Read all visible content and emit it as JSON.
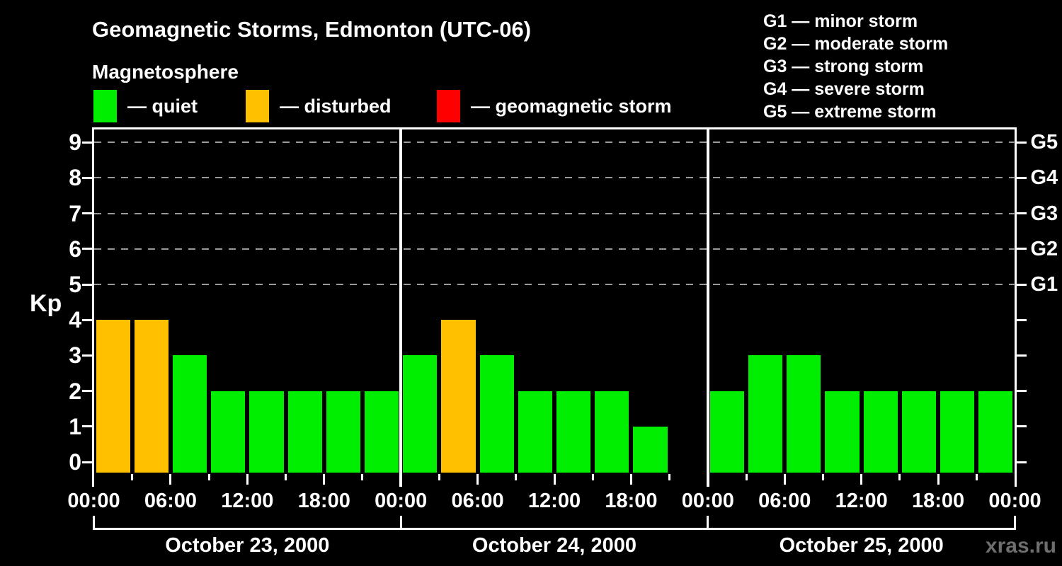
{
  "header": {
    "title": "Geomagnetic Storms, Edmonton (UTC-06)",
    "subtitle": "Magnetosphere",
    "legend": [
      {
        "name": "quiet",
        "label": "— quiet",
        "color": "#00EE00"
      },
      {
        "name": "disturbed",
        "label": "— disturbed",
        "color": "#FFC000"
      },
      {
        "name": "geomagnetic-storm",
        "label": "— geomagnetic storm",
        "color": "#FF0000"
      }
    ],
    "g_scale_legend": [
      "G1 — minor storm",
      "G2 — moderate storm",
      "G3 — strong storm",
      "G4 — severe storm",
      "G5 — extreme storm"
    ]
  },
  "chart_data": {
    "type": "bar",
    "title": "Geomagnetic Storms, Edmonton (UTC-06)",
    "ylabel": "Kp",
    "ylim": [
      0,
      9
    ],
    "y_ticks": [
      0,
      1,
      2,
      3,
      4,
      5,
      6,
      7,
      8,
      9
    ],
    "gridlines_at_kp": [
      5,
      6,
      7,
      8,
      9
    ],
    "grid": "dashed horizontal at storm levels only",
    "legend_position": "top",
    "right_axis": [
      {
        "label": "G1",
        "kp": 5
      },
      {
        "label": "G2",
        "kp": 6
      },
      {
        "label": "G3",
        "kp": 7
      },
      {
        "label": "G4",
        "kp": 8
      },
      {
        "label": "G5",
        "kp": 9
      }
    ],
    "bar_interval_hours": 3,
    "x_tick_labels": [
      "00:00",
      "06:00",
      "12:00",
      "18:00",
      "00:00",
      "06:00",
      "12:00",
      "18:00",
      "00:00",
      "06:00",
      "12:00",
      "18:00",
      "00:00"
    ],
    "color_rule": {
      "quiet_max_kp": 3,
      "disturbed_kp": 4,
      "storm_min_kp": 5
    },
    "series_colors": {
      "quiet": "#00EE00",
      "disturbed": "#FFC000",
      "storm": "#FF0000"
    },
    "days": [
      {
        "date": "October 23, 2000",
        "kp_values": [
          4,
          4,
          3,
          2,
          2,
          2,
          2,
          2
        ]
      },
      {
        "date": "October 24, 2000",
        "kp_values": [
          3,
          4,
          3,
          2,
          2,
          2,
          1,
          null
        ]
      },
      {
        "date": "October 25, 2000",
        "kp_values": [
          2,
          3,
          3,
          2,
          2,
          2,
          2,
          2
        ]
      }
    ]
  },
  "watermark": "xras.ru"
}
